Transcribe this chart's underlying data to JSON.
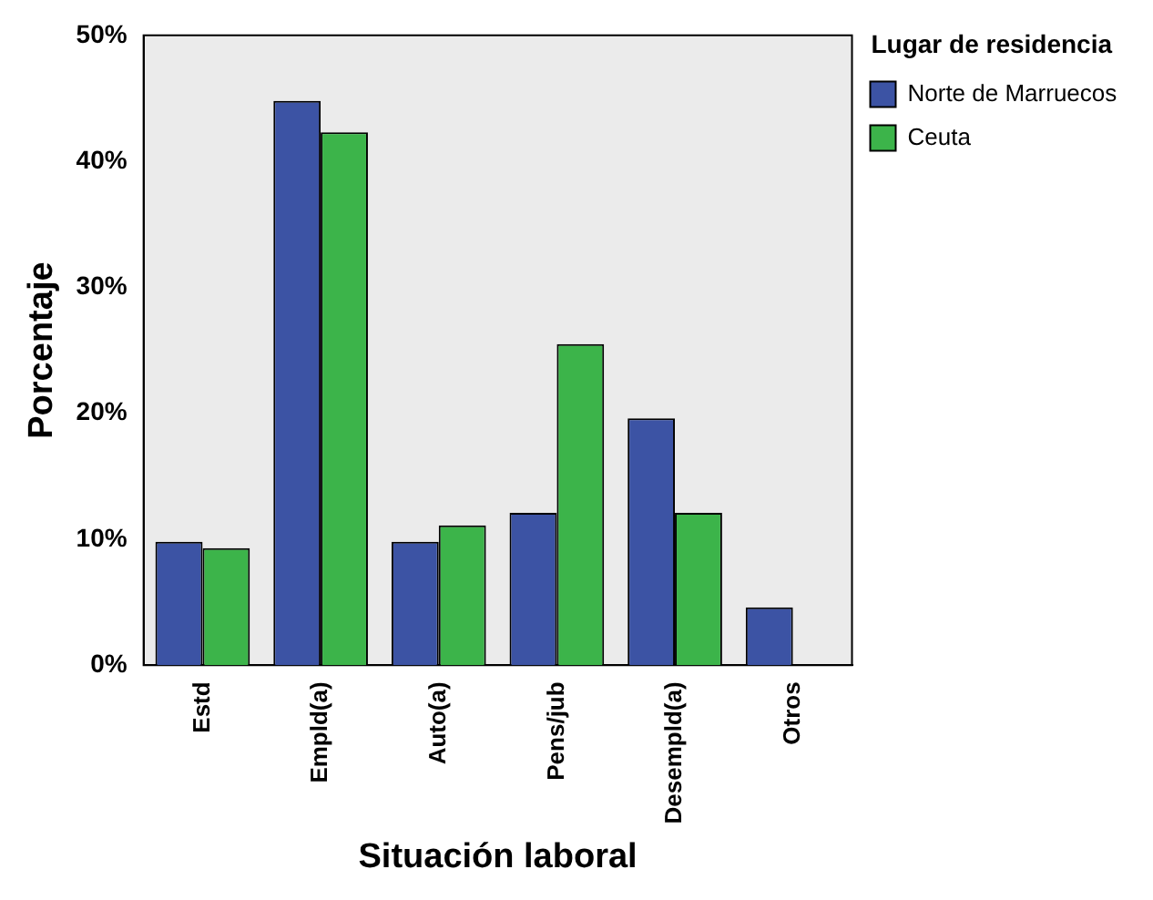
{
  "chart_data": {
    "type": "bar",
    "xlabel": "Situación laboral",
    "ylabel": "Porcentaje",
    "legend_title": "Lugar de residencia",
    "categories": [
      "Estd",
      "Empld(a)",
      "Auto(a)",
      "Pens/jub",
      "Desempld(a)",
      "Otros"
    ],
    "series": [
      {
        "name": "Norte de Marruecos",
        "color": "#3c53a4",
        "values": [
          9.8,
          44.8,
          9.8,
          12.1,
          19.6,
          4.6
        ]
      },
      {
        "name": "Ceuta",
        "color": "#3cb44a",
        "values": [
          9.3,
          42.3,
          11.1,
          25.5,
          12.1,
          0
        ]
      }
    ],
    "ylim": [
      0,
      50
    ],
    "yticks": [
      {
        "value": 0,
        "label": "0%"
      },
      {
        "value": 10,
        "label": "10%"
      },
      {
        "value": 20,
        "label": "20%"
      },
      {
        "value": 30,
        "label": "30%"
      },
      {
        "value": 40,
        "label": "40%"
      },
      {
        "value": 50,
        "label": "50%"
      }
    ],
    "grid": false,
    "legend": "top right"
  }
}
